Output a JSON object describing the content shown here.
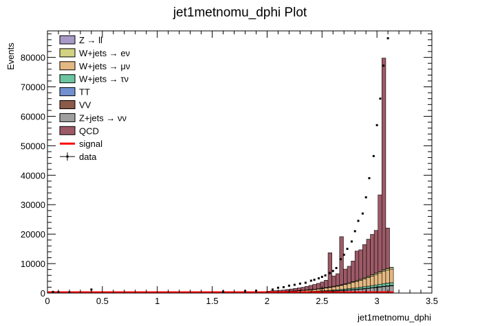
{
  "chart_data": {
    "type": "bar",
    "subtype": "stacked-histogram",
    "title": "jet1metnomu_dphi Plot",
    "xlabel": "jet1metnomu_dphi",
    "ylabel": "Events",
    "xlim": [
      0,
      3.5
    ],
    "ylim": [
      0,
      89000
    ],
    "x_ticks": [
      "0",
      "0.5",
      "1",
      "1.5",
      "2",
      "2.5",
      "3",
      "3.5"
    ],
    "y_ticks": [
      "0",
      "10000",
      "20000",
      "30000",
      "40000",
      "50000",
      "60000",
      "70000",
      "80000"
    ],
    "grid": false,
    "legend_position": "top-left",
    "bin_width": 0.035,
    "bin_centers": [
      2.0125,
      2.0475,
      2.0825,
      2.1175,
      2.1525,
      2.1875,
      2.2225,
      2.2575,
      2.2925,
      2.3275,
      2.3625,
      2.3975,
      2.4325,
      2.4675,
      2.5025,
      2.5375,
      2.5725,
      2.6075,
      2.6425,
      2.6775,
      2.7125,
      2.7475,
      2.7825,
      2.8175,
      2.8525,
      2.8875,
      2.9225,
      2.9575,
      2.9925,
      3.0275,
      3.0625,
      3.0975,
      3.1325
    ],
    "series": [
      {
        "name": "Z → νν",
        "color": "#a0a0a0",
        "values": [
          100,
          110,
          120,
          140,
          160,
          180,
          200,
          230,
          260,
          290,
          320,
          360,
          400,
          450,
          500,
          560,
          620,
          680,
          750,
          830,
          910,
          1000,
          1100,
          1200,
          1300,
          1420,
          1550,
          1700,
          1850,
          2000,
          2150,
          2300,
          2400
        ]
      },
      {
        "name": "VV",
        "color": "#8b5a48",
        "values": [
          5,
          5,
          6,
          7,
          8,
          9,
          10,
          11,
          12,
          13,
          14,
          16,
          18,
          20,
          22,
          25,
          28,
          31,
          34,
          38,
          42,
          46,
          50,
          55,
          60,
          65,
          70,
          75,
          80,
          85,
          90,
          95,
          100
        ]
      },
      {
        "name": "TT",
        "color": "#7090d0",
        "values": [
          8,
          9,
          10,
          11,
          12,
          13,
          14,
          15,
          16,
          18,
          20,
          22,
          24,
          26,
          28,
          30,
          33,
          36,
          39,
          42,
          45,
          48,
          52,
          56,
          60,
          64,
          68,
          72,
          76,
          80,
          84,
          88,
          92
        ]
      },
      {
        "name": "W+jets → τν",
        "color": "#6cc4a0",
        "values": [
          40,
          45,
          50,
          55,
          60,
          70,
          80,
          90,
          100,
          115,
          130,
          145,
          160,
          180,
          200,
          225,
          250,
          280,
          310,
          340,
          380,
          420,
          460,
          500,
          550,
          600,
          650,
          700,
          760,
          820,
          880,
          900,
          920
        ]
      },
      {
        "name": "W+jets → μν",
        "color": "#e4b882",
        "values": [
          150,
          170,
          190,
          210,
          240,
          270,
          300,
          340,
          380,
          430,
          480,
          540,
          600,
          680,
          760,
          860,
          960,
          1080,
          1200,
          1350,
          1500,
          1700,
          1900,
          2100,
          2350,
          2600,
          2900,
          3200,
          3500,
          3800,
          4100,
          4400,
          4600
        ]
      },
      {
        "name": "W+jets → eν",
        "color": "#d2d282",
        "values": [
          30,
          34,
          38,
          42,
          46,
          52,
          58,
          64,
          70,
          78,
          86,
          95,
          105,
          115,
          128,
          140,
          155,
          170,
          185,
          205,
          225,
          245,
          270,
          295,
          320,
          350,
          380,
          410,
          440,
          470,
          500,
          520,
          540
        ]
      },
      {
        "name": "Z → ll",
        "color": "#a89ac6",
        "values": [
          5,
          5,
          6,
          6,
          7,
          7,
          8,
          9,
          10,
          11,
          12,
          13,
          14,
          16,
          18,
          20,
          22,
          24,
          26,
          29,
          32,
          35,
          38,
          42,
          46,
          50,
          54,
          58,
          62,
          66,
          70,
          74,
          78
        ]
      },
      {
        "name": "QCD",
        "color": "#9c5a66",
        "values": [
          300,
          350,
          400,
          450,
          500,
          600,
          700,
          800,
          900,
          1000,
          1200,
          1400,
          1600,
          1800,
          2100,
          2500,
          11600,
          3500,
          4000,
          16300,
          5000,
          5600,
          7000,
          10000,
          10000,
          11300,
          12600,
          13700,
          14500,
          26000,
          71900,
          13700,
          0
        ]
      },
      {
        "name": "signal",
        "color": "#ff0000",
        "values": [
          0,
          0,
          0,
          0,
          0,
          0,
          0,
          0,
          0,
          0,
          0,
          0,
          0,
          0,
          0,
          0,
          0,
          0,
          0,
          0,
          0,
          0,
          0,
          0,
          0,
          0,
          0,
          0,
          0,
          0,
          0,
          0,
          0
        ]
      }
    ],
    "data": {
      "name": "data",
      "x": [
        0.05,
        0.1,
        0.2,
        0.4,
        1.6,
        1.8,
        1.9,
        2.05,
        2.1,
        2.15,
        2.2,
        2.25,
        2.3,
        2.35,
        2.4,
        2.43,
        2.47,
        2.5,
        2.53,
        2.57,
        2.6,
        2.63,
        2.67,
        2.7,
        2.73,
        2.77,
        2.8,
        2.83,
        2.87,
        2.9,
        2.93,
        2.97,
        3.0,
        3.03,
        3.06,
        3.1
      ],
      "y": [
        400,
        300,
        250,
        1200,
        500,
        700,
        800,
        1200,
        1800,
        2000,
        2500,
        2800,
        3200,
        3500,
        4200,
        4500,
        5000,
        5500,
        6000,
        6800,
        7500,
        8500,
        11500,
        13000,
        15000,
        17500,
        21000,
        24500,
        27000,
        32500,
        39000,
        46500,
        57000,
        66000,
        77200,
        86500
      ]
    }
  },
  "legend": {
    "entries": [
      {
        "label": "Z → ll",
        "color": "#a89ac6",
        "kind": "box"
      },
      {
        "label": "W+jets → eν",
        "color": "#d2d282",
        "kind": "box"
      },
      {
        "label": "W+jets → μν",
        "color": "#e4b882",
        "kind": "box"
      },
      {
        "label": "W+jets → τν",
        "color": "#6cc4a0",
        "kind": "box"
      },
      {
        "label": "TT",
        "color": "#7090d0",
        "kind": "box"
      },
      {
        "label": "VV",
        "color": "#8b5a48",
        "kind": "box"
      },
      {
        "label": "Z+jets → νν",
        "color": "#a0a0a0",
        "kind": "box"
      },
      {
        "label": "QCD",
        "color": "#9c5a66",
        "kind": "box"
      },
      {
        "label": "signal",
        "color": "#ff0000",
        "kind": "line"
      },
      {
        "label": "data",
        "color": "#000000",
        "kind": "marker"
      }
    ]
  }
}
